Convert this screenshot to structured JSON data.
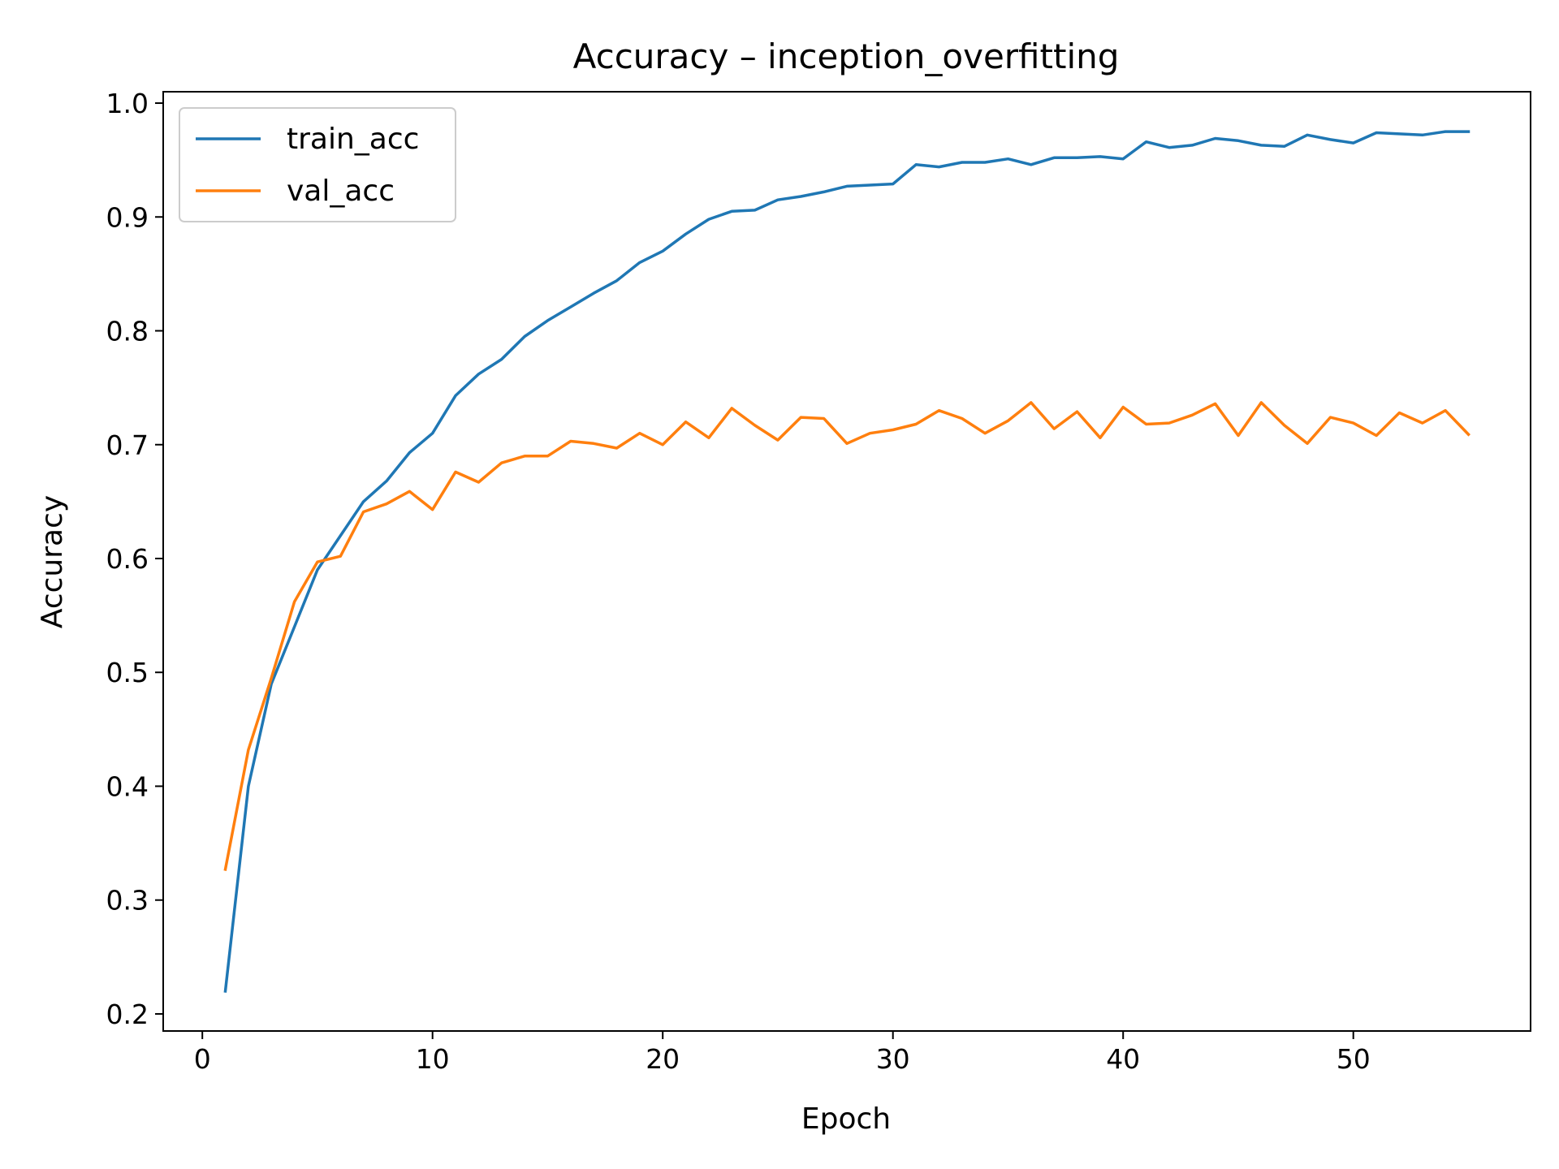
{
  "chart_data": {
    "type": "line",
    "title": "Accuracy – inception_overfitting",
    "xlabel": "Epoch",
    "ylabel": "Accuracy",
    "xlim": [
      -1.7,
      57.7
    ],
    "ylim": [
      0.185,
      1.01
    ],
    "xticks": [
      0,
      10,
      20,
      30,
      40,
      50
    ],
    "yticks": [
      0.2,
      0.3,
      0.4,
      0.5,
      0.6,
      0.7,
      0.8,
      0.9,
      1.0
    ],
    "grid": false,
    "legend_position": "top-left",
    "x": [
      1,
      2,
      3,
      4,
      5,
      6,
      7,
      8,
      9,
      10,
      11,
      12,
      13,
      14,
      15,
      16,
      17,
      18,
      19,
      20,
      21,
      22,
      23,
      24,
      25,
      26,
      27,
      28,
      29,
      30,
      31,
      32,
      33,
      34,
      35,
      36,
      37,
      38,
      39,
      40,
      41,
      42,
      43,
      44,
      45,
      46,
      47,
      48,
      49,
      50,
      51,
      52,
      53,
      54,
      55
    ],
    "series": [
      {
        "name": "train_acc",
        "color": "#1f77b4",
        "values": [
          0.22,
          0.4,
          0.49,
          0.54,
          0.59,
          0.62,
          0.65,
          0.668,
          0.693,
          0.71,
          0.743,
          0.762,
          0.775,
          0.795,
          0.809,
          0.821,
          0.833,
          0.844,
          0.86,
          0.87,
          0.885,
          0.898,
          0.905,
          0.906,
          0.915,
          0.918,
          0.922,
          0.927,
          0.928,
          0.929,
          0.946,
          0.944,
          0.948,
          0.948,
          0.951,
          0.946,
          0.952,
          0.952,
          0.953,
          0.951,
          0.966,
          0.961,
          0.963,
          0.969,
          0.967,
          0.963,
          0.962,
          0.972,
          0.968,
          0.965,
          0.974,
          0.973,
          0.972,
          0.975,
          0.975
        ]
      },
      {
        "name": "val_acc",
        "color": "#ff7f0e",
        "values": [
          0.327,
          0.432,
          0.495,
          0.562,
          0.597,
          0.602,
          0.641,
          0.648,
          0.659,
          0.643,
          0.676,
          0.667,
          0.684,
          0.69,
          0.69,
          0.703,
          0.701,
          0.697,
          0.71,
          0.7,
          0.72,
          0.706,
          0.732,
          0.717,
          0.704,
          0.724,
          0.723,
          0.701,
          0.71,
          0.713,
          0.718,
          0.73,
          0.723,
          0.71,
          0.721,
          0.737,
          0.714,
          0.729,
          0.706,
          0.733,
          0.718,
          0.719,
          0.726,
          0.736,
          0.708,
          0.737,
          0.717,
          0.701,
          0.724,
          0.719,
          0.708,
          0.728,
          0.719,
          0.73,
          0.709
        ]
      }
    ]
  }
}
